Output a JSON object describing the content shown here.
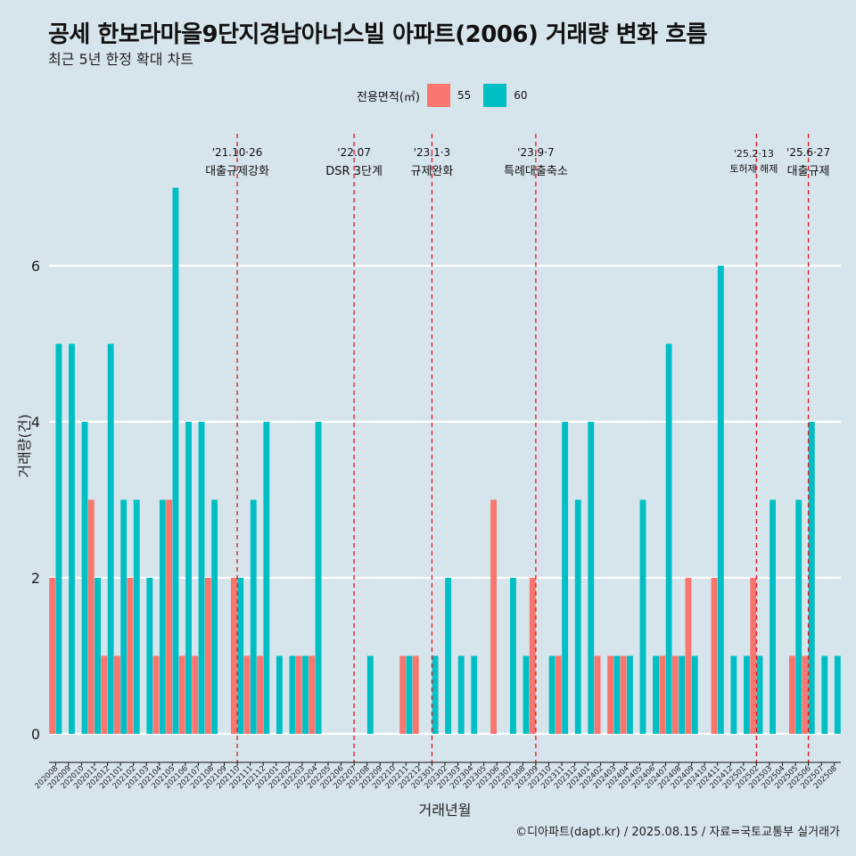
{
  "chart_data": {
    "type": "bar",
    "title": "공세 한보라마을9단지경남아너스빌 아파트(2006) 거래량 변화 흐름",
    "subtitle": "최근 5년 한정 확대 차트",
    "xlabel": "거래년월",
    "ylabel": "거래량(건)",
    "legend_title": "전용면적(㎡)",
    "legend_position": "top",
    "ylim": [
      0,
      7
    ],
    "yticks": [
      0,
      2,
      4,
      6
    ],
    "grid": true,
    "colors": {
      "55": "#f8766d",
      "60": "#00bfc4"
    },
    "categories": [
      "202008",
      "202009",
      "202010",
      "202011",
      "202012",
      "202101",
      "202102",
      "202103",
      "202104",
      "202105",
      "202106",
      "202107",
      "202108",
      "202109",
      "202110",
      "202111",
      "202112",
      "202201",
      "202202",
      "202203",
      "202204",
      "202205",
      "202206",
      "202207",
      "202208",
      "202209",
      "202210",
      "202211",
      "202212",
      "202301",
      "202302",
      "202303",
      "202304",
      "202305",
      "202306",
      "202307",
      "202308",
      "202309",
      "202310",
      "202311",
      "202312",
      "202401",
      "202402",
      "202403",
      "202404",
      "202405",
      "202406",
      "202407",
      "202408",
      "202409",
      "202410",
      "202411",
      "202412",
      "202501",
      "202502",
      "202503",
      "202504",
      "202505",
      "202506",
      "202507",
      "202508"
    ],
    "series": [
      {
        "name": "55",
        "values": [
          2,
          0,
          0,
          3,
          1,
          1,
          2,
          0,
          1,
          3,
          1,
          1,
          2,
          0,
          2,
          1,
          1,
          0,
          0,
          1,
          1,
          0,
          0,
          0,
          0,
          0,
          0,
          1,
          1,
          0,
          0,
          0,
          0,
          0,
          3,
          0,
          0,
          2,
          0,
          1,
          0,
          0,
          1,
          1,
          1,
          0,
          0,
          1,
          1,
          2,
          0,
          2,
          0,
          0,
          2,
          0,
          0,
          1,
          1,
          0,
          0
        ]
      },
      {
        "name": "60",
        "values": [
          5,
          5,
          4,
          2,
          5,
          3,
          3,
          2,
          3,
          7,
          4,
          4,
          3,
          0,
          2,
          3,
          4,
          1,
          1,
          1,
          4,
          0,
          0,
          0,
          1,
          0,
          0,
          1,
          0,
          1,
          2,
          1,
          1,
          0,
          0,
          2,
          1,
          0,
          1,
          4,
          3,
          4,
          0,
          1,
          1,
          3,
          1,
          5,
          1,
          1,
          0,
          6,
          1,
          1,
          1,
          3,
          0,
          3,
          4,
          1,
          1
        ]
      }
    ],
    "annotations": [
      {
        "x": "202110",
        "date": "'21.10·26",
        "label": "대출규제강화"
      },
      {
        "x": "202207",
        "date": "'22.07",
        "label": "DSR 3단계"
      },
      {
        "x": "202301",
        "date": "'23.1·3",
        "label": "규제완화"
      },
      {
        "x": "202309",
        "date": "'23.9·7",
        "label": "특례대출축소"
      },
      {
        "x": "202502",
        "date": "'25.2·13",
        "label": "토허제 해제"
      },
      {
        "x": "202506",
        "date": "'25.6·27",
        "label": "대출규제"
      }
    ]
  },
  "caption": "©디아파트(dapt.kr) / 2025.08.15 / 자료=국토교통부 실거래가"
}
